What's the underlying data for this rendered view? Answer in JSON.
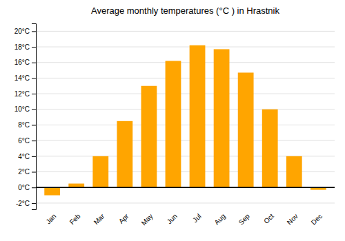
{
  "chart_data": {
    "type": "bar",
    "title": "Average monthly temperatures (°C ) in Hrastnik",
    "categories": [
      "Jan",
      "Feb",
      "Mar",
      "Apr",
      "May",
      "Jun",
      "Jul",
      "Aug",
      "Sep",
      "Oct",
      "Nov",
      "Dec"
    ],
    "values": [
      -1.0,
      0.5,
      4.0,
      8.5,
      13.0,
      16.2,
      18.2,
      17.7,
      14.7,
      10.0,
      4.0,
      -0.3
    ],
    "color": "#FFA500",
    "ylim": [
      -2.8,
      21.0
    ],
    "yticks": [
      {
        "value": -2,
        "label": "-2°C"
      },
      {
        "value": 0,
        "label": "0°C"
      },
      {
        "value": 2,
        "label": "2°C"
      },
      {
        "value": 4,
        "label": "4°C"
      },
      {
        "value": 6,
        "label": "6°C"
      },
      {
        "value": 8,
        "label": "8°C"
      },
      {
        "value": 10,
        "label": "10°C"
      },
      {
        "value": 12,
        "label": "12°C"
      },
      {
        "value": 14,
        "label": "14°C"
      },
      {
        "value": 16,
        "label": "16°C"
      },
      {
        "value": 18,
        "label": "18°C"
      },
      {
        "value": 20,
        "label": "20°C"
      }
    ],
    "grid": true
  }
}
